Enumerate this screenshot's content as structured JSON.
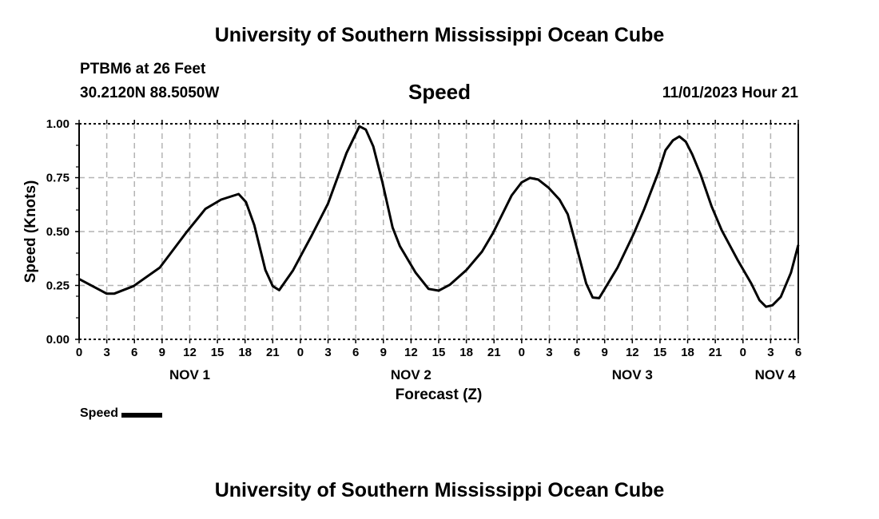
{
  "header": {
    "title": "University of Southern Mississippi Ocean Cube",
    "station": "PTBM6 at 26 Feet",
    "coords": "30.2120N  88.5050W",
    "variable": "Speed",
    "datetime": "11/01/2023 Hour 21"
  },
  "footer": {
    "title": "University of Southern Mississippi Ocean Cube"
  },
  "chart_data": {
    "type": "line",
    "title": "Speed",
    "xlabel": "Forecast (Z)",
    "ylabel": "Speed (Knots)",
    "xlim": [
      0,
      78
    ],
    "ylim": [
      0,
      1
    ],
    "grid": true,
    "legend": {
      "position": "bottom-left",
      "entries": [
        "Speed"
      ]
    },
    "y_ticks": [
      0,
      0.25,
      0.5,
      0.75,
      1.0
    ],
    "y_tick_labels": [
      "0.00",
      "0.25",
      "0.50",
      "0.75",
      "1.00"
    ],
    "x_ticks_hours": [
      0,
      3,
      6,
      9,
      12,
      15,
      18,
      21,
      24,
      27,
      30,
      33,
      36,
      39,
      42,
      45,
      48,
      51,
      54,
      57,
      60,
      63,
      66,
      69,
      72,
      75,
      78
    ],
    "x_tick_labels": [
      "0",
      "3",
      "6",
      "9",
      "12",
      "15",
      "18",
      "21",
      "0",
      "3",
      "6",
      "9",
      "12",
      "15",
      "18",
      "21",
      "0",
      "3",
      "6",
      "9",
      "12",
      "15",
      "18",
      "21",
      "0",
      "3",
      "6"
    ],
    "date_labels": [
      {
        "label": "NOV 1",
        "hour": 12
      },
      {
        "label": "NOV 2",
        "hour": 36
      },
      {
        "label": "NOV 3",
        "hour": 60
      },
      {
        "label": "NOV 4",
        "hour": 75.5
      }
    ],
    "series": [
      {
        "name": "Speed",
        "color": "#000000",
        "x": [
          0,
          3,
          3.8,
          5.9,
          8.75,
          11.6,
          13.7,
          15.4,
          17.3,
          18.1,
          19,
          20.2,
          21,
          21.7,
          23.2,
          25.2,
          27,
          29,
          30.4,
          31.1,
          31.9,
          32.9,
          34,
          34.8,
          36.5,
          37.9,
          39,
          40.2,
          42,
          43.7,
          44.9,
          46.9,
          48,
          48.9,
          49.8,
          50.9,
          52.1,
          53,
          54,
          55,
          55.7,
          56.4,
          58.4,
          60.2,
          61.3,
          62.8,
          63.6,
          64.4,
          65.1,
          65.8,
          66.5,
          67.4,
          68.6,
          69.7,
          71.4,
          72.9,
          73.8,
          74.5,
          75.2,
          76.1,
          77.2,
          78
        ],
        "y": [
          0.28,
          0.212,
          0.212,
          0.247,
          0.333,
          0.494,
          0.605,
          0.648,
          0.674,
          0.637,
          0.53,
          0.322,
          0.247,
          0.228,
          0.32,
          0.48,
          0.63,
          0.864,
          0.988,
          0.973,
          0.895,
          0.728,
          0.519,
          0.432,
          0.309,
          0.234,
          0.226,
          0.253,
          0.321,
          0.407,
          0.494,
          0.667,
          0.728,
          0.749,
          0.741,
          0.704,
          0.648,
          0.58,
          0.42,
          0.259,
          0.194,
          0.191,
          0.333,
          0.494,
          0.605,
          0.772,
          0.877,
          0.923,
          0.941,
          0.917,
          0.858,
          0.765,
          0.617,
          0.506,
          0.37,
          0.259,
          0.181,
          0.151,
          0.158,
          0.197,
          0.309,
          0.438
        ]
      }
    ]
  }
}
